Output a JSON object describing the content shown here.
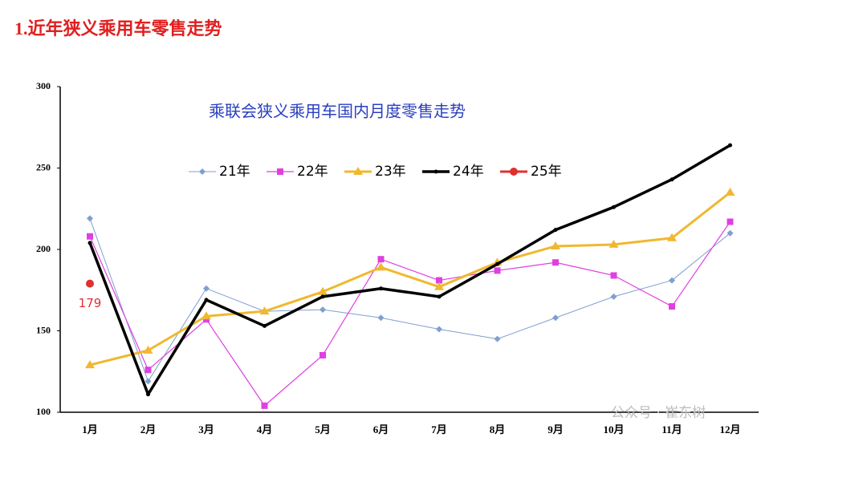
{
  "heading": "1.近年狭义乘用车零售走势",
  "watermark": "公众号 · 崔东树",
  "chart_data": {
    "type": "line",
    "title": "乘联会狭义乘用车国内月度零售走势",
    "categories": [
      "1月",
      "2月",
      "3月",
      "4月",
      "5月",
      "6月",
      "7月",
      "8月",
      "9月",
      "10月",
      "11月",
      "12月"
    ],
    "ylim": [
      100,
      300
    ],
    "yticks": [
      100,
      150,
      200,
      250,
      300
    ],
    "grid": false,
    "legend": "top",
    "series": [
      {
        "name": "21年",
        "color": "#7f9fcf",
        "marker": "diamond",
        "values": [
          219,
          119,
          176,
          162,
          163,
          158,
          151,
          145,
          158,
          171,
          181,
          210
        ]
      },
      {
        "name": "22年",
        "color": "#e040e0",
        "marker": "square",
        "values": [
          208,
          126,
          157,
          104,
          135,
          194,
          181,
          187,
          192,
          184,
          165,
          217
        ]
      },
      {
        "name": "23年",
        "color": "#f0b830",
        "marker": "triangle",
        "values": [
          129,
          138,
          159,
          162,
          174,
          189,
          177,
          192,
          202,
          203,
          207,
          235
        ]
      },
      {
        "name": "24年",
        "color": "#000000",
        "marker": "dot",
        "values": [
          204,
          111,
          169,
          153,
          171,
          176,
          171,
          191,
          212,
          226,
          243,
          264
        ]
      },
      {
        "name": "25年",
        "color": "#e03030",
        "marker": "circle",
        "values": [
          179,
          null,
          null,
          null,
          null,
          null,
          null,
          null,
          null,
          null,
          null,
          null
        ],
        "value_labels": [
          "179",
          null,
          null,
          null,
          null,
          null,
          null,
          null,
          null,
          null,
          null,
          null
        ]
      }
    ]
  }
}
